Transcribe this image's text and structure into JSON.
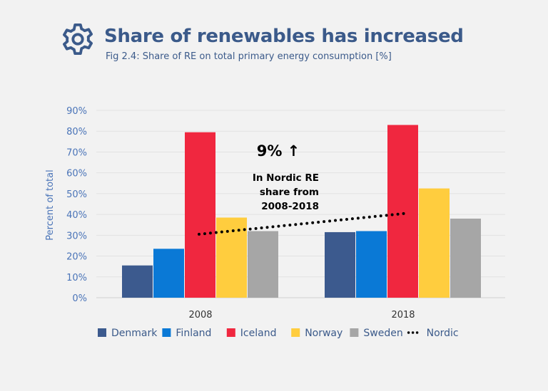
{
  "header": {
    "title": "Share of renewables has increased",
    "subtitle": "Fig 2.4: Share of RE on total primary energy consumption [%]",
    "icon": "gear-icon"
  },
  "chart_data": {
    "type": "bar",
    "categories": [
      "2008",
      "2018"
    ],
    "series": [
      {
        "name": "Denmark",
        "color": "#3c5a8e",
        "values": [
          15.5,
          31.5
        ]
      },
      {
        "name": "Finland",
        "color": "#0a79d6",
        "values": [
          23.5,
          32
        ]
      },
      {
        "name": "Iceland",
        "color": "#f0273f",
        "values": [
          79.5,
          83
        ]
      },
      {
        "name": "Norway",
        "color": "#ffcd3e",
        "values": [
          38.5,
          52.5
        ]
      },
      {
        "name": "Sweden",
        "color": "#a6a6a6",
        "values": [
          32,
          38
        ]
      }
    ],
    "line_series": {
      "name": "Nordic",
      "style": "dotted",
      "color": "#000000",
      "values": [
        30.5,
        40.5
      ]
    },
    "ylabel": "Percent of total",
    "xlabel": "",
    "ylim": [
      0,
      90
    ],
    "yticks": [
      "0%",
      "10%",
      "20%",
      "30%",
      "40%",
      "50%",
      "60%",
      "70%",
      "80%",
      "90%"
    ],
    "grid": true,
    "legend_position": "bottom",
    "annotation": {
      "headline": "9% ↑",
      "lines": [
        "In Nordic RE",
        "share from",
        "2008-2018"
      ]
    }
  }
}
